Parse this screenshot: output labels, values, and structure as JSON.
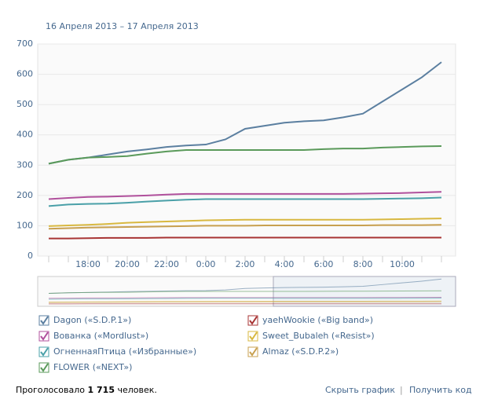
{
  "chart_data": {
    "type": "line",
    "subtitle": "16 Апреля 2013 – 17 Апреля 2013",
    "categories": [
      null,
      null,
      "18:00",
      null,
      "20:00",
      null,
      "22:00",
      null,
      "0:00",
      null,
      "2:00",
      null,
      "4:00",
      null,
      "6:00",
      null,
      "8:00",
      null,
      "10:00",
      null,
      null
    ],
    "ylim": [
      0,
      700
    ],
    "yticks": [
      0,
      100,
      200,
      300,
      400,
      500,
      600,
      700
    ],
    "grid": true,
    "series": [
      {
        "name": "Dagon («S.D.P.1»)",
        "color": "#5b7fa0",
        "values": [
          305,
          318,
          325,
          335,
          345,
          352,
          360,
          365,
          368,
          385,
          420,
          430,
          440,
          445,
          448,
          458,
          470,
          510,
          550,
          590,
          640
        ]
      },
      {
        "name": "yaehWookie («Big band»)",
        "color": "#a83434",
        "values": [
          58,
          58,
          59,
          60,
          60,
          60,
          61,
          61,
          61,
          61,
          61,
          61,
          61,
          61,
          61,
          61,
          61,
          61,
          61,
          61,
          61
        ]
      },
      {
        "name": "Вованка («Mordlust»)",
        "color": "#b0509c",
        "values": [
          188,
          192,
          195,
          196,
          198,
          200,
          203,
          205,
          205,
          205,
          205,
          205,
          205,
          205,
          205,
          205,
          206,
          207,
          208,
          210,
          212
        ]
      },
      {
        "name": "Sweet_Bubaleh («Resist»)",
        "color": "#d8b840",
        "values": [
          99,
          101,
          103,
          106,
          110,
          112,
          114,
          116,
          118,
          119,
          120,
          120,
          120,
          120,
          120,
          120,
          120,
          121,
          122,
          123,
          124
        ]
      },
      {
        "name": "ОгненнаяПтица («Избранные»)",
        "color": "#4aa0a8",
        "values": [
          165,
          170,
          172,
          173,
          176,
          180,
          183,
          186,
          188,
          188,
          188,
          188,
          188,
          188,
          188,
          188,
          188,
          189,
          190,
          191,
          193
        ]
      },
      {
        "name": "Almaz («S.D.P.2»)",
        "color": "#c8a050",
        "values": [
          90,
          92,
          94,
          95,
          96,
          97,
          98,
          99,
          100,
          100,
          100,
          101,
          101,
          101,
          101,
          101,
          101,
          102,
          102,
          102,
          103
        ]
      },
      {
        "name": "FLOWER («NEXT»)",
        "color": "#5a9a5a",
        "values": [
          305,
          318,
          325,
          327,
          330,
          338,
          345,
          350,
          350,
          350,
          350,
          350,
          350,
          350,
          353,
          355,
          355,
          358,
          360,
          362,
          363
        ]
      }
    ]
  },
  "footer": {
    "voted_prefix": "Проголосовало",
    "voted_count": "1 715",
    "voted_suffix": "человек.",
    "hide_link": "Скрыть график",
    "code_link": "Получить код"
  }
}
